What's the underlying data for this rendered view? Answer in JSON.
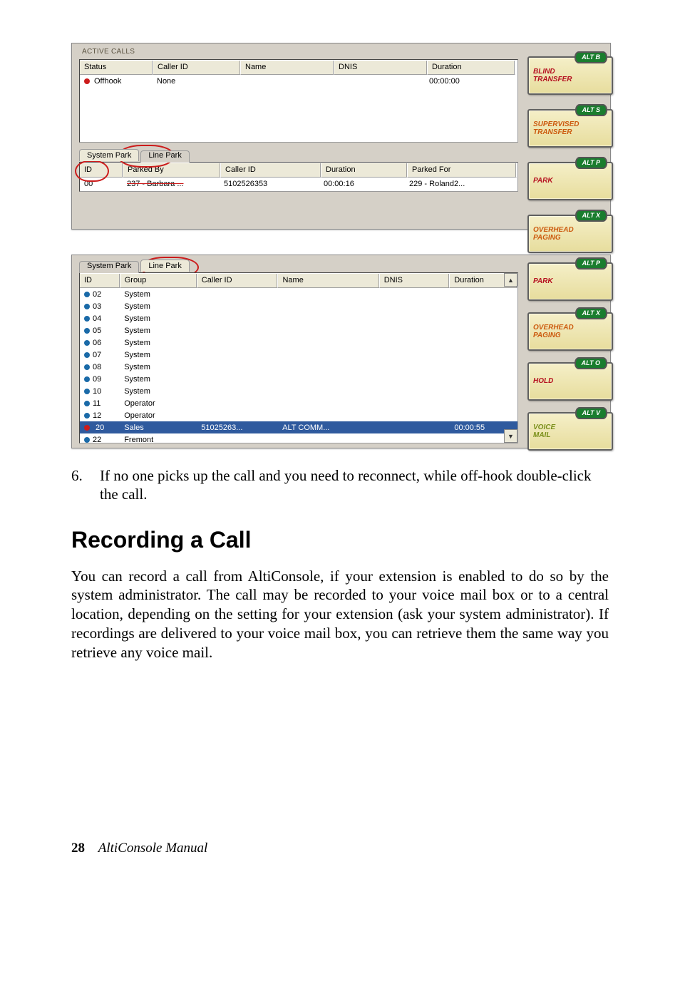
{
  "panel1": {
    "section_label": "ACTIVE CALLS",
    "headers": {
      "status": "Status",
      "cid": "Caller ID",
      "name": "Name",
      "dnis": "DNIS",
      "dur": "Duration"
    },
    "row": {
      "status": "Offhook",
      "cid": "None",
      "name": "",
      "dnis": "",
      "dur": "00:00:00"
    },
    "tabs": {
      "a": "System Park",
      "b": "Line Park"
    },
    "park_headers": {
      "id": "ID",
      "pby": "Parked By",
      "cid": "Caller ID",
      "dur": "Duration",
      "pfor": "Parked For"
    },
    "park_row": {
      "id": "00",
      "pby": "237 - Barbara ...",
      "cid": "5102526353",
      "dur": "00:00:16",
      "pfor": "229 - Roland2..."
    },
    "buttons": {
      "b1": {
        "pill": "ALT B",
        "label1": "BLIND",
        "label2": "TRANSFER"
      },
      "b2": {
        "pill": "ALT S",
        "label1": "SUPERVISED",
        "label2": "TRANSFER"
      },
      "b3": {
        "pill": "ALT P",
        "label1": "PARK"
      },
      "b4": {
        "pill": "ALT X",
        "label1": "OVERHEAD",
        "label2": "PAGING"
      }
    }
  },
  "panel2": {
    "tabs": {
      "a": "System Park",
      "b": "Line Park"
    },
    "headers": {
      "id": "ID",
      "grp": "Group",
      "cid": "Caller ID",
      "name": "Name",
      "dnis": "DNIS",
      "dur": "Duration"
    },
    "rows": [
      {
        "id": "02",
        "grp": "System"
      },
      {
        "id": "03",
        "grp": "System"
      },
      {
        "id": "04",
        "grp": "System"
      },
      {
        "id": "05",
        "grp": "System"
      },
      {
        "id": "06",
        "grp": "System"
      },
      {
        "id": "07",
        "grp": "System"
      },
      {
        "id": "08",
        "grp": "System"
      },
      {
        "id": "09",
        "grp": "System"
      },
      {
        "id": "10",
        "grp": "System"
      },
      {
        "id": "11",
        "grp": "Operator"
      },
      {
        "id": "12",
        "grp": "Operator"
      },
      {
        "id": "20",
        "grp": "Sales",
        "cid": "51025263...",
        "name": "ALT COMM...",
        "dur": "00:00:55",
        "sel": true,
        "red": true
      },
      {
        "id": "22",
        "grp": "Fremont"
      }
    ],
    "buttons": {
      "b1": {
        "pill": "ALT P",
        "label1": "PARK"
      },
      "b2": {
        "pill": "ALT X",
        "label1": "OVERHEAD",
        "label2": "PAGING"
      },
      "b3": {
        "pill": "ALT O",
        "label1": "HOLD"
      },
      "b4": {
        "pill": "ALT V",
        "label1": "VOICE",
        "label2": "MAIL"
      }
    }
  },
  "text": {
    "step_num": "6.",
    "step_txt": "If no one picks up the call and you need to reconnect, while off-hook double-click the call.",
    "heading": "Recording a Call",
    "para": "You can record a call from AltiConsole, if your extension is enabled to do so by the system administrator. The call may be recorded to your voice mail box or to a central location, depending on the setting for your extension (ask your system administrator). If recordings are delivered to your voice mail box, you can retrieve them the same way you retrieve any voice mail.",
    "page_num": "28",
    "manual": "AltiConsole Manual"
  }
}
